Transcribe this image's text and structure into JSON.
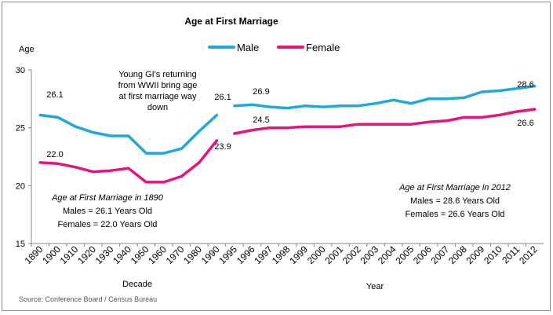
{
  "chart_data": {
    "type": "line",
    "title": "Age at First Marriage",
    "ylabel": "Age",
    "ylim": [
      15,
      30
    ],
    "yticks": [
      15,
      20,
      25,
      30
    ],
    "grid": false,
    "legend_position": "top-center",
    "legend": [
      {
        "name": "Male",
        "color": "#1fa8dc"
      },
      {
        "name": "Female",
        "color": "#e8147c"
      }
    ],
    "panels": [
      {
        "xlabel": "Decade",
        "categories": [
          "1890",
          "1900",
          "1910",
          "1920",
          "1930",
          "1940",
          "1950",
          "1960",
          "1970",
          "1980",
          "1990"
        ],
        "series": [
          {
            "name": "Male",
            "color": "#1fa8dc",
            "values": [
              26.1,
              25.9,
              25.1,
              24.6,
              24.3,
              24.3,
              22.8,
              22.8,
              23.2,
              24.7,
              26.1
            ]
          },
          {
            "name": "Female",
            "color": "#e8147c",
            "values": [
              22.0,
              21.9,
              21.6,
              21.2,
              21.3,
              21.5,
              20.3,
              20.3,
              20.8,
              22.0,
              23.9
            ]
          }
        ]
      },
      {
        "xlabel": "Year",
        "categories": [
          "1995",
          "1996",
          "1997",
          "1998",
          "1999",
          "2000",
          "2001",
          "2002",
          "2003",
          "2004",
          "2005",
          "2006",
          "2007",
          "2008",
          "2009",
          "2010",
          "2011",
          "2012"
        ],
        "series": [
          {
            "name": "Male",
            "color": "#1fa8dc",
            "values": [
              26.9,
              27.0,
              26.8,
              26.7,
              26.9,
              26.8,
              26.9,
              26.9,
              27.1,
              27.4,
              27.1,
              27.5,
              27.5,
              27.6,
              28.1,
              28.2,
              28.4,
              28.6
            ]
          },
          {
            "name": "Female",
            "color": "#e8147c",
            "values": [
              24.5,
              24.8,
              25.0,
              25.0,
              25.1,
              25.1,
              25.1,
              25.3,
              25.3,
              25.3,
              25.3,
              25.5,
              25.6,
              25.9,
              25.9,
              26.1,
              26.4,
              26.6
            ]
          }
        ]
      }
    ],
    "data_labels": [
      "26.1",
      "22.0",
      "26.1",
      "23.9",
      "26.9",
      "24.5",
      "28.6",
      "26.6"
    ],
    "annotations": {
      "wwii": "Young GI's returning from WWII bring age at first marriage way down",
      "left_title": "Age at First Marriage in 1890",
      "left_males": "Males = 26.1 Years Old",
      "left_females": "Females = 22.0 Years Old",
      "right_title": "Age at First Marriage in 2012",
      "right_males": "Males = 28.6 Years Old",
      "right_females": "Females = 26.6 Years Old"
    },
    "source": "Source:  Conference Board / Census Bureau"
  }
}
